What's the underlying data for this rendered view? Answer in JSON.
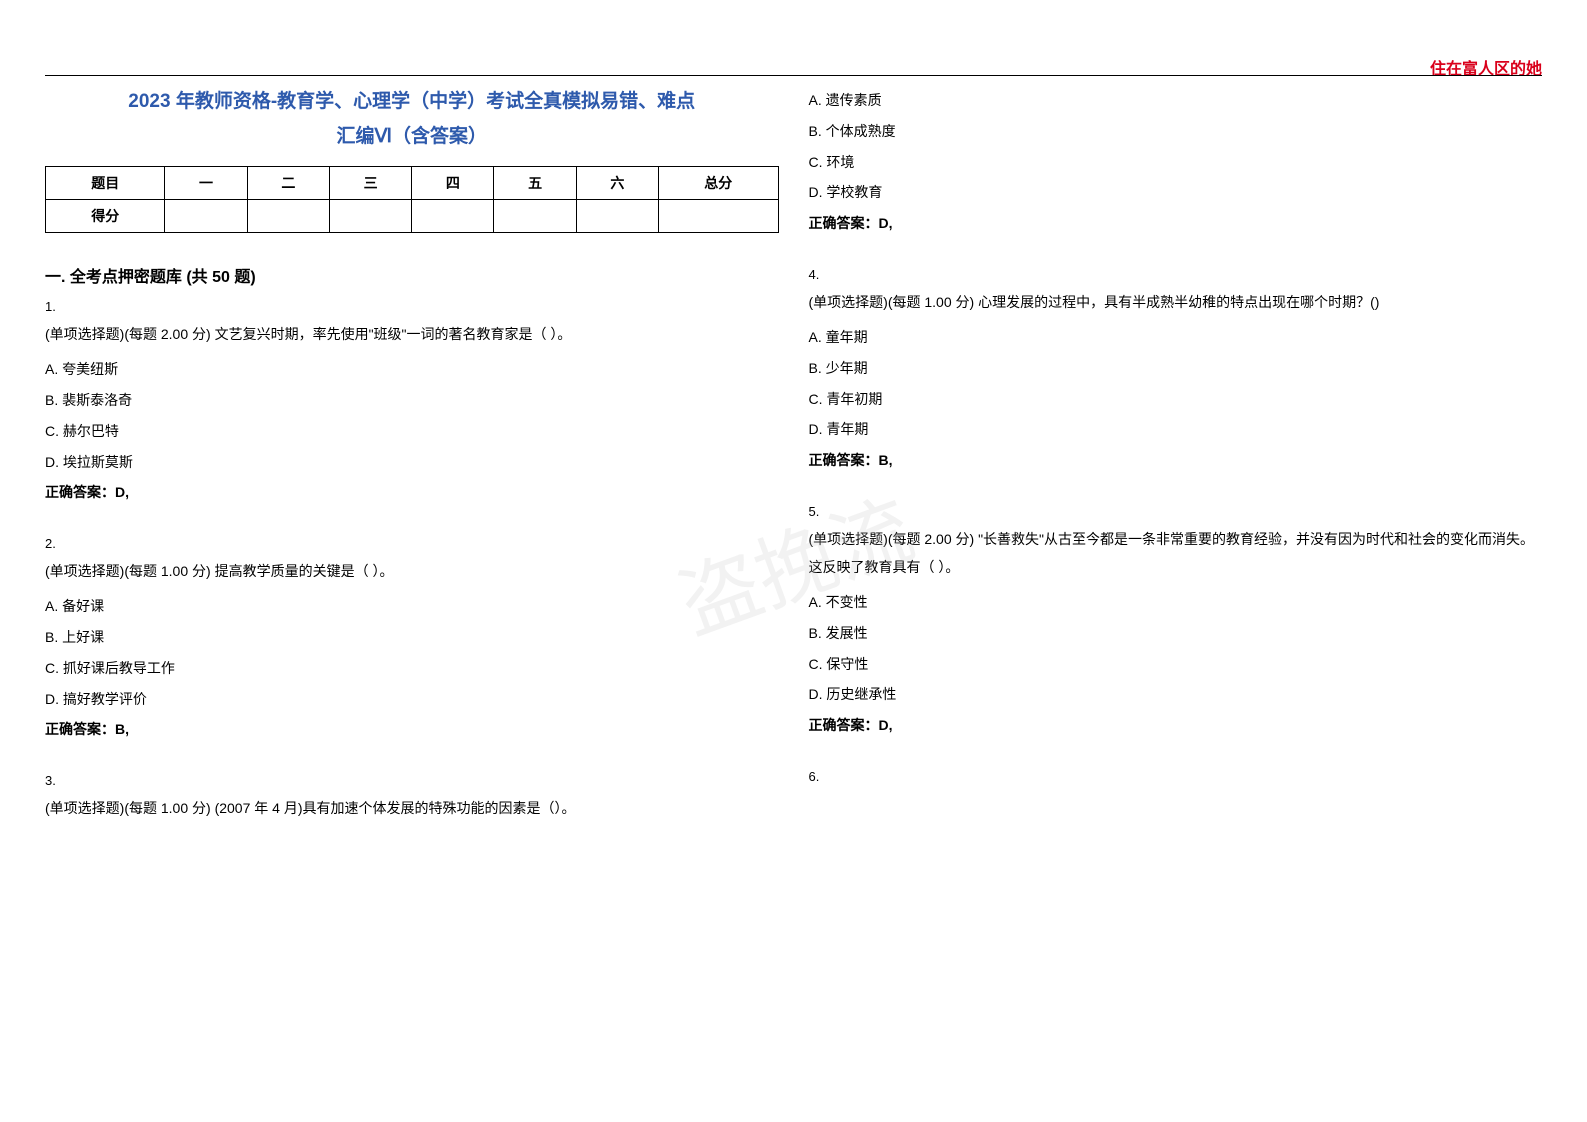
{
  "watermark_corner": "住在富人区的她",
  "watermark_center": "盗挽流",
  "title_line1": "2023 年教师资格-教育学、心理学（中学）考试全真模拟易错、难点",
  "title_line2": "汇编Ⅵ（含答案）",
  "score_table": {
    "headers": [
      "题目",
      "一",
      "二",
      "三",
      "四",
      "五",
      "六",
      "总分"
    ],
    "row_label": "得分"
  },
  "section_heading": "一. 全考点押密题库 (共 50 题)",
  "questions_left": [
    {
      "num": "1.",
      "stem": "(单项选择题)(每题 2.00 分) 文艺复兴时期，率先使用\"班级\"一词的著名教育家是（ ）。",
      "options": [
        "A. 夸美纽斯",
        "B. 裴斯泰洛奇",
        "C. 赫尔巴特",
        "D. 埃拉斯莫斯"
      ],
      "answer": "正确答案：D,"
    },
    {
      "num": "2.",
      "stem": "(单项选择题)(每题 1.00 分) 提高教学质量的关键是（ ）。",
      "options": [
        "A. 备好课",
        "B. 上好课",
        "C. 抓好课后教导工作",
        "D. 搞好教学评价"
      ],
      "answer": "正确答案：B,"
    },
    {
      "num": "3.",
      "stem": "(单项选择题)(每题 1.00 分) (2007 年 4 月)具有加速个体发展的特殊功能的因素是（）。",
      "options": [],
      "answer": ""
    }
  ],
  "questions_right": [
    {
      "num": "",
      "stem": "",
      "options": [
        "A. 遗传素质",
        "B. 个体成熟度",
        "C. 环境",
        "D. 学校教育"
      ],
      "answer": "正确答案：D,"
    },
    {
      "num": "4.",
      "stem": "(单项选择题)(每题 1.00 分) 心理发展的过程中，具有半成熟半幼稚的特点出现在哪个时期？()",
      "options": [
        "A. 童年期",
        "B. 少年期",
        "C. 青年初期",
        "D. 青年期"
      ],
      "answer": "正确答案：B,"
    },
    {
      "num": "5.",
      "stem": "(单项选择题)(每题 2.00 分) \"长善救失\"从古至今都是一条非常重要的教育经验，并没有因为时代和社会的变化而消失。这反映了教育具有（ ）。",
      "options": [
        "A. 不变性",
        "B. 发展性",
        "C. 保守性",
        "D. 历史继承性"
      ],
      "answer": "正确答案：D,"
    },
    {
      "num": "6.",
      "stem": "",
      "options": [],
      "answer": ""
    }
  ],
  "colors": {
    "title_color": "#2e5aac",
    "corner_color": "#d9001b",
    "text_color": "#000000"
  }
}
